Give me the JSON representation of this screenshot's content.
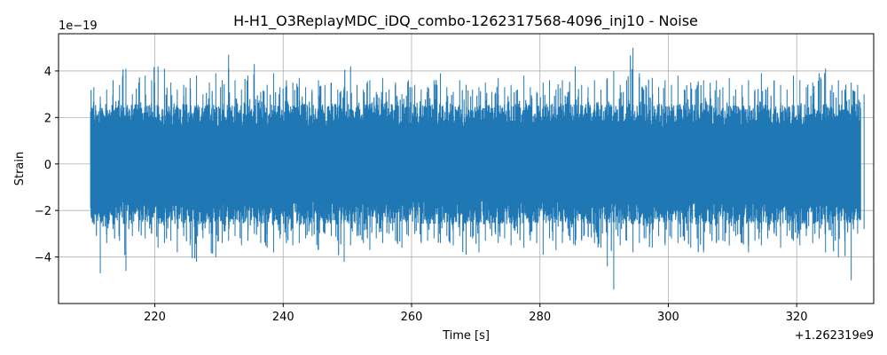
{
  "chart_data": {
    "type": "line",
    "title": "H-H1_O3ReplayMDC_iDQ_combo-1262317568-4096_inj10 - Noise",
    "xlabel": "Time [s]",
    "ylabel": "Strain",
    "x_offset_label": "+1.262319e9",
    "y_scale_label": "1e−19",
    "xlim": [
      205,
      332
    ],
    "ylim": [
      -6,
      5.6
    ],
    "grid": true,
    "x_ticks": [
      220,
      240,
      260,
      280,
      300,
      320
    ],
    "x_tick_labels": [
      "220",
      "240",
      "260",
      "280",
      "300",
      "320"
    ],
    "y_ticks": [
      -4,
      -2,
      0,
      2,
      4
    ],
    "y_tick_labels": [
      "−4",
      "−2",
      "0",
      "2",
      "4"
    ],
    "series": [
      {
        "color": "#1f77b4",
        "x_range": [
          210,
          330
        ],
        "envelope": [
          [
            210,
            -2.6,
            3.3
          ],
          [
            211,
            -4.7,
            2.9
          ],
          [
            212,
            -3.4,
            3.2
          ],
          [
            213,
            -2.8,
            3.6
          ],
          [
            214,
            -3.3,
            3.4
          ],
          [
            215,
            -4.6,
            4.1
          ],
          [
            216,
            -3.1,
            3.0
          ],
          [
            217,
            -2.9,
            3.5
          ],
          [
            218,
            -3.2,
            3.8
          ],
          [
            219,
            -3.0,
            3.6
          ],
          [
            220,
            -3.6,
            4.2
          ],
          [
            221,
            -3.4,
            4.1
          ],
          [
            222,
            -3.3,
            3.5
          ],
          [
            223,
            -3.8,
            3.2
          ],
          [
            224,
            -3.1,
            3.4
          ],
          [
            225,
            -3.5,
            3.7
          ],
          [
            226,
            -4.2,
            3.8
          ],
          [
            227,
            -3.2,
            3.0
          ],
          [
            228,
            -3.0,
            3.5
          ],
          [
            229,
            -4.0,
            3.9
          ],
          [
            230,
            -3.4,
            3.6
          ],
          [
            231,
            -3.3,
            4.7
          ],
          [
            232,
            -3.1,
            3.6
          ],
          [
            233,
            -3.5,
            3.2
          ],
          [
            234,
            -3.3,
            3.8
          ],
          [
            235,
            -3.0,
            4.3
          ],
          [
            236,
            -3.4,
            3.1
          ],
          [
            237,
            -3.6,
            3.4
          ],
          [
            238,
            -3.8,
            3.9
          ],
          [
            239,
            -3.2,
            3.3
          ],
          [
            240,
            -3.4,
            3.6
          ],
          [
            241,
            -3.5,
            3.5
          ],
          [
            242,
            -3.4,
            3.7
          ],
          [
            243,
            -3.2,
            3.3
          ],
          [
            244,
            -3.1,
            3.2
          ],
          [
            245,
            -3.7,
            3.6
          ],
          [
            246,
            -3.0,
            3.4
          ],
          [
            247,
            -3.1,
            3.5
          ],
          [
            248,
            -3.3,
            3.2
          ],
          [
            249,
            -4.2,
            3.3
          ],
          [
            250,
            -3.5,
            4.2
          ],
          [
            251,
            -3.1,
            3.4
          ],
          [
            252,
            -3.4,
            3.2
          ],
          [
            253,
            -3.7,
            3.6
          ],
          [
            254,
            -3.2,
            3.1
          ],
          [
            255,
            -3.4,
            3.7
          ],
          [
            256,
            -3.0,
            3.2
          ],
          [
            257,
            -3.3,
            3.5
          ],
          [
            258,
            -3.6,
            3.0
          ],
          [
            259,
            -3.1,
            3.6
          ],
          [
            260,
            -3.0,
            3.4
          ],
          [
            261,
            -3.4,
            3.2
          ],
          [
            262,
            -3.3,
            3.3
          ],
          [
            263,
            -3.2,
            3.6
          ],
          [
            264,
            -3.4,
            3.9
          ],
          [
            265,
            -3.1,
            3.3
          ],
          [
            266,
            -3.5,
            3.1
          ],
          [
            267,
            -3.1,
            3.6
          ],
          [
            268,
            -3.9,
            3.4
          ],
          [
            269,
            -3.2,
            3.2
          ],
          [
            270,
            -3.8,
            3.3
          ],
          [
            271,
            -3.3,
            3.5
          ],
          [
            272,
            -3.1,
            3.1
          ],
          [
            273,
            -3.4,
            3.7
          ],
          [
            274,
            -3.2,
            3.3
          ],
          [
            275,
            -3.5,
            3.4
          ],
          [
            276,
            -3.0,
            3.2
          ],
          [
            277,
            -3.6,
            3.8
          ],
          [
            278,
            -3.3,
            3.3
          ],
          [
            279,
            -3.4,
            3.1
          ],
          [
            280,
            -3.9,
            3.5
          ],
          [
            281,
            -3.2,
            3.6
          ],
          [
            282,
            -3.7,
            3.2
          ],
          [
            283,
            -3.4,
            3.6
          ],
          [
            284,
            -3.1,
            3.1
          ],
          [
            285,
            -3.5,
            4.2
          ],
          [
            286,
            -3.3,
            3.4
          ],
          [
            287,
            -3.1,
            3.3
          ],
          [
            288,
            -3.4,
            3.6
          ],
          [
            289,
            -3.6,
            3.2
          ],
          [
            290,
            -4.4,
            3.7
          ],
          [
            291,
            -5.4,
            4.0
          ],
          [
            292,
            -3.5,
            3.4
          ],
          [
            293,
            -3.3,
            3.6
          ],
          [
            294,
            -3.8,
            5.0
          ],
          [
            295,
            -3.4,
            3.9
          ],
          [
            296,
            -3.2,
            3.4
          ],
          [
            297,
            -3.6,
            3.7
          ],
          [
            298,
            -3.1,
            3.3
          ],
          [
            299,
            -3.5,
            3.6
          ],
          [
            300,
            -3.2,
            3.4
          ],
          [
            301,
            -3.4,
            3.8
          ],
          [
            302,
            -3.3,
            3.2
          ],
          [
            303,
            -3.6,
            3.5
          ],
          [
            304,
            -3.2,
            3.4
          ],
          [
            305,
            -3.8,
            3.6
          ],
          [
            306,
            -3.0,
            3.1
          ],
          [
            307,
            -3.4,
            3.6
          ],
          [
            308,
            -3.3,
            3.3
          ],
          [
            309,
            -3.5,
            3.7
          ],
          [
            310,
            -3.1,
            3.2
          ],
          [
            311,
            -3.4,
            3.4
          ],
          [
            312,
            -3.8,
            3.6
          ],
          [
            313,
            -3.3,
            3.2
          ],
          [
            314,
            -3.5,
            3.9
          ],
          [
            315,
            -3.2,
            3.3
          ],
          [
            316,
            -3.0,
            3.6
          ],
          [
            317,
            -3.6,
            3.4
          ],
          [
            318,
            -3.1,
            3.2
          ],
          [
            319,
            -3.3,
            3.8
          ],
          [
            320,
            -3.5,
            3.6
          ],
          [
            321,
            -3.1,
            3.3
          ],
          [
            322,
            -3.4,
            3.5
          ],
          [
            323,
            -3.2,
            3.9
          ],
          [
            324,
            -3.8,
            4.1
          ],
          [
            325,
            -3.1,
            3.4
          ],
          [
            326,
            -4.0,
            3.6
          ],
          [
            327,
            -3.3,
            3.2
          ],
          [
            328,
            -5.0,
            3.5
          ],
          [
            329,
            -3.0,
            3.4
          ],
          [
            330,
            -2.8,
            3.0
          ]
        ]
      }
    ]
  }
}
